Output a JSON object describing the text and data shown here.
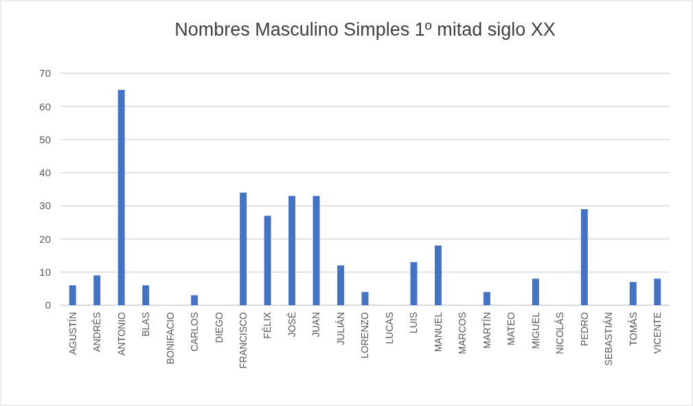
{
  "chart_data": {
    "type": "bar",
    "title": "Nombres Masculino Simples 1º mitad siglo XX",
    "categories": [
      "AGUSTÍN",
      "ANDRÉS",
      "ANTONIO",
      "BLAS",
      "BONIFACIO",
      "CARLOS",
      "DIEGO",
      "FRANCISCO",
      "FÉLIX",
      "JOSÉ",
      "JUAN",
      "JULIÁN",
      "LORENZO",
      "LUCAS",
      "LUIS",
      "MANUEL",
      "MARCOS",
      "MARTÍN",
      "MATEO",
      "MIGUEL",
      "NICOLÁS",
      "PEDRO",
      "SEBASTIÁN",
      "TOMÁS",
      "VICENTE"
    ],
    "values": [
      6,
      9,
      65,
      6,
      0,
      3,
      0,
      34,
      27,
      33,
      33,
      12,
      4,
      0,
      13,
      18,
      0,
      4,
      0,
      8,
      0,
      29,
      0,
      7,
      8
    ],
    "color": "#4472c4",
    "ylim": [
      0,
      70
    ],
    "yticks": [
      0,
      10,
      20,
      30,
      40,
      50,
      60,
      70
    ],
    "grid": "y"
  }
}
